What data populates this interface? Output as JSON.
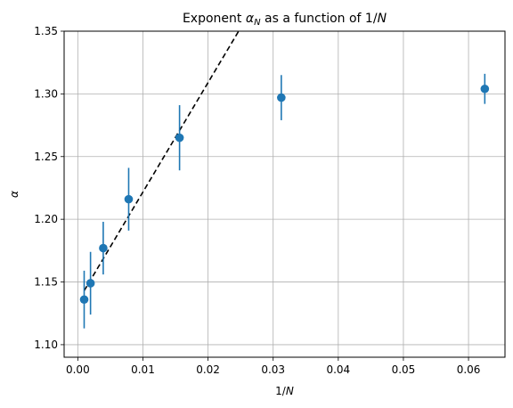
{
  "chart_data": {
    "type": "scatter",
    "title_prefix": "Exponent ",
    "title_symbol": "α",
    "title_subscript": "N",
    "title_suffix": " as a function of 1/",
    "title_suffix_var": "N",
    "xlabel_prefix": "1/",
    "xlabel_var": "N",
    "ylabel": "α",
    "xlim": [
      -0.0021,
      0.0656
    ],
    "ylim": [
      1.09,
      1.35
    ],
    "x_ticks": [
      0.0,
      0.01,
      0.02,
      0.03,
      0.04,
      0.05,
      0.06
    ],
    "x_tick_labels": [
      "0.00",
      "0.01",
      "0.02",
      "0.03",
      "0.04",
      "0.05",
      "0.06"
    ],
    "y_ticks": [
      1.1,
      1.15,
      1.2,
      1.25,
      1.3,
      1.35
    ],
    "y_tick_labels": [
      "1.10",
      "1.15",
      "1.20",
      "1.25",
      "1.30",
      "1.35"
    ],
    "grid": true,
    "colors": {
      "points": "#1f77b4",
      "fit_line": "#000000",
      "grid": "#b0b0b0"
    },
    "series": [
      {
        "x": [
          0.0009766,
          0.0019531,
          0.0039063,
          0.0078125,
          0.015625,
          0.03125,
          0.0625
        ],
        "y": [
          1.136,
          1.149,
          1.177,
          1.216,
          1.265,
          1.297,
          1.304
        ],
        "yerr": [
          0.023,
          0.025,
          0.021,
          0.025,
          0.026,
          0.018,
          0.012
        ]
      }
    ],
    "fit_line": {
      "style": "dashed",
      "x": [
        0.0009766,
        0.0247
      ],
      "y": [
        1.143,
        1.35
      ]
    }
  }
}
